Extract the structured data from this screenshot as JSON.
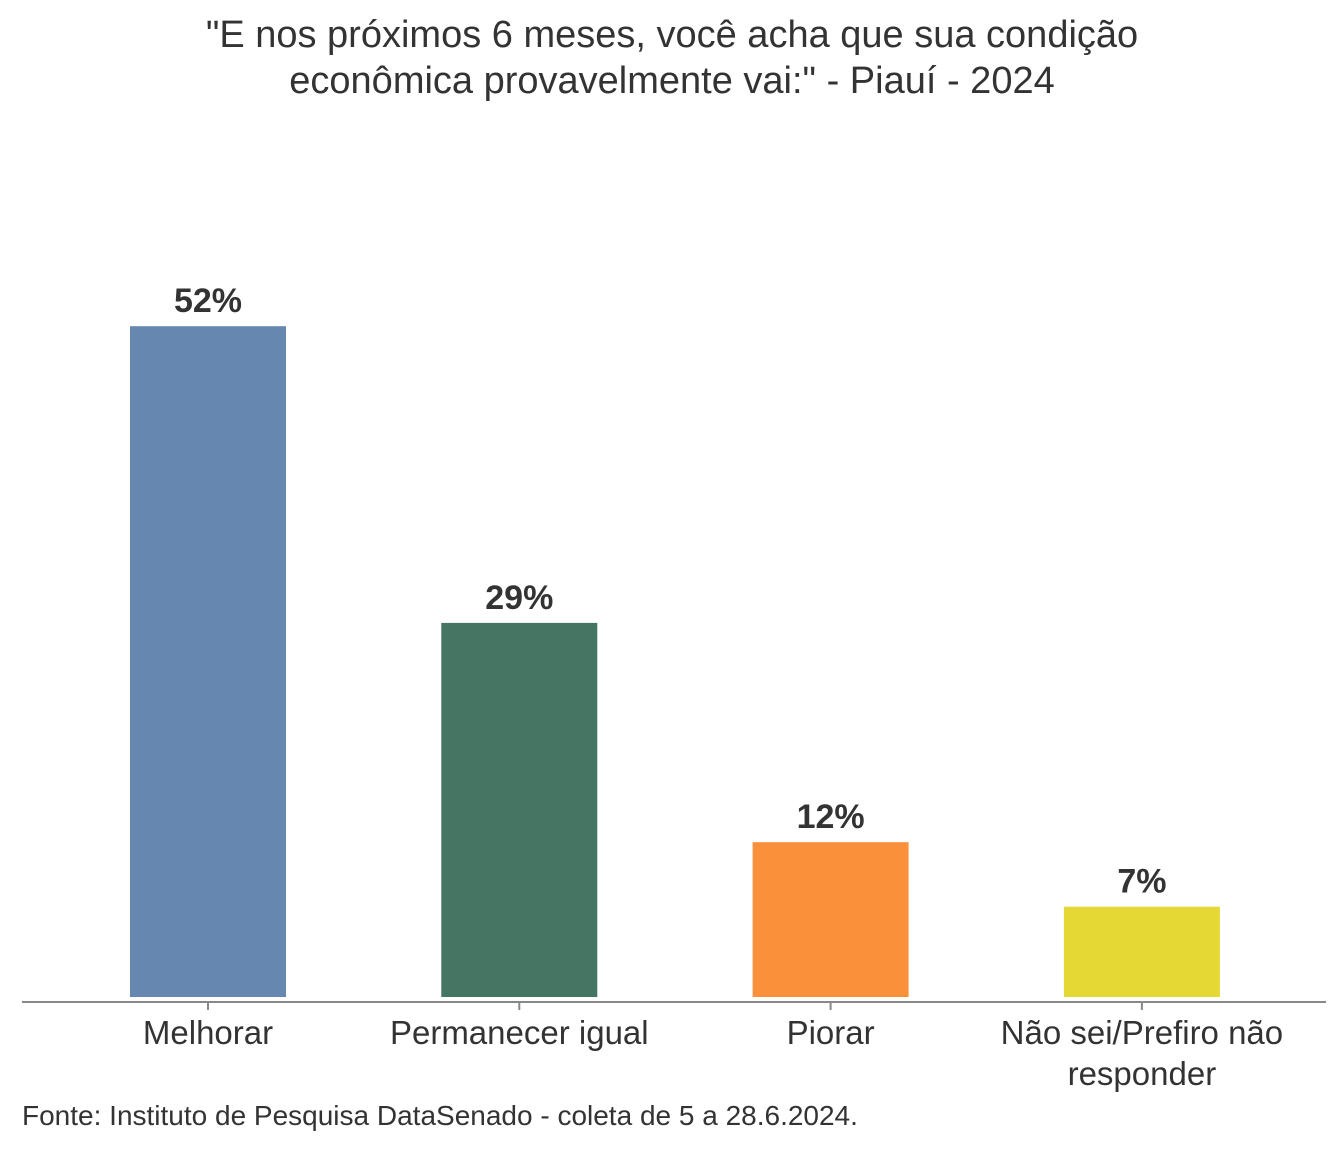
{
  "chart_data": {
    "type": "bar",
    "title_lines": [
      "\"E nos próximos 6 meses, você acha que sua condição",
      "econômica provavelmente vai:\" - Piauí - 2024"
    ],
    "categories": [
      [
        "Melhorar"
      ],
      [
        "Permanecer igual"
      ],
      [
        "Piorar"
      ],
      [
        "Não sei/Prefiro não",
        "responder"
      ]
    ],
    "values": [
      52,
      29,
      12,
      7
    ],
    "value_labels": [
      "52%",
      "29%",
      "12%",
      "7%"
    ],
    "colors": [
      "#6587B0",
      "#457563",
      "#FA9039",
      "#E5D734"
    ],
    "ylim": [
      0,
      60
    ],
    "grid": false,
    "legend": "none"
  },
  "source": "Fonte: Instituto de Pesquisa DataSenado - coleta de 5 a 28.6.2024."
}
